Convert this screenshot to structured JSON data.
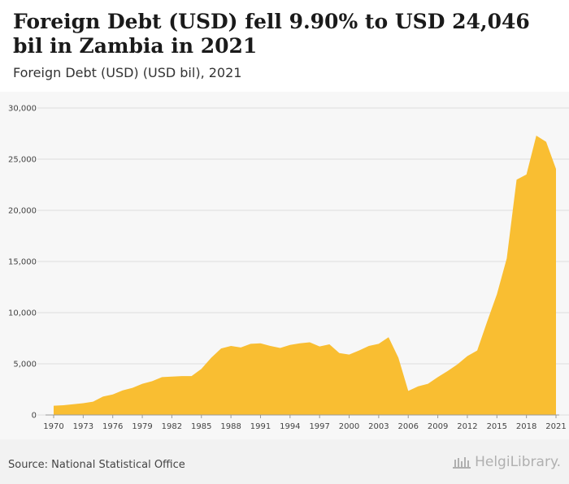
{
  "header": {
    "title": "Foreign Debt (USD) fell 9.90% to USD 24,046 bil in Zambia in 2021",
    "subtitle": "Foreign Debt (USD) (USD bil), 2021"
  },
  "footer": {
    "source": "Source: National Statistical Office",
    "logo_text": "HelgiLibrary."
  },
  "colors": {
    "area": "#f9be32",
    "grid": "#dddddd",
    "plot_background": "#f7f7f7"
  },
  "chart_data": {
    "type": "area",
    "title": "Foreign Debt (USD) fell 9.90% to USD 24,046 bil in Zambia in 2021",
    "subtitle": "Foreign Debt (USD) (USD bil), 2021",
    "xlabel": "",
    "ylabel": "",
    "ylim": [
      0,
      30000
    ],
    "yticks": [
      0,
      5000,
      10000,
      15000,
      20000,
      25000,
      30000
    ],
    "ytick_labels": [
      "0",
      "5,000",
      "10,000",
      "15,000",
      "20,000",
      "25,000",
      "30,000"
    ],
    "xticks": [
      1970,
      1973,
      1976,
      1979,
      1982,
      1985,
      1988,
      1991,
      1994,
      1997,
      2000,
      2003,
      2006,
      2009,
      2012,
      2015,
      2018,
      2021
    ],
    "grid": true,
    "legend": "none",
    "x": [
      1970,
      1971,
      1972,
      1973,
      1974,
      1975,
      1976,
      1977,
      1978,
      1979,
      1980,
      1981,
      1982,
      1983,
      1984,
      1985,
      1986,
      1987,
      1988,
      1989,
      1990,
      1991,
      1992,
      1993,
      1994,
      1995,
      1996,
      1997,
      1998,
      1999,
      2000,
      2001,
      2002,
      2003,
      2004,
      2005,
      2006,
      2007,
      2008,
      2009,
      2010,
      2011,
      2012,
      2013,
      2014,
      2015,
      2016,
      2017,
      2018,
      2019,
      2020,
      2021
    ],
    "values": [
      900,
      950,
      1050,
      1150,
      1300,
      1800,
      2000,
      2400,
      2650,
      3050,
      3300,
      3700,
      3750,
      3800,
      3800,
      4500,
      5600,
      6500,
      6750,
      6600,
      6950,
      7000,
      6750,
      6550,
      6850,
      7000,
      7100,
      6700,
      6900,
      6050,
      5900,
      6300,
      6750,
      6950,
      7600,
      5600,
      2350,
      2800,
      3050,
      3700,
      4300,
      4950,
      5750,
      6300,
      9100,
      11800,
      15300,
      23000,
      23500,
      27300,
      26700,
      24046
    ]
  }
}
